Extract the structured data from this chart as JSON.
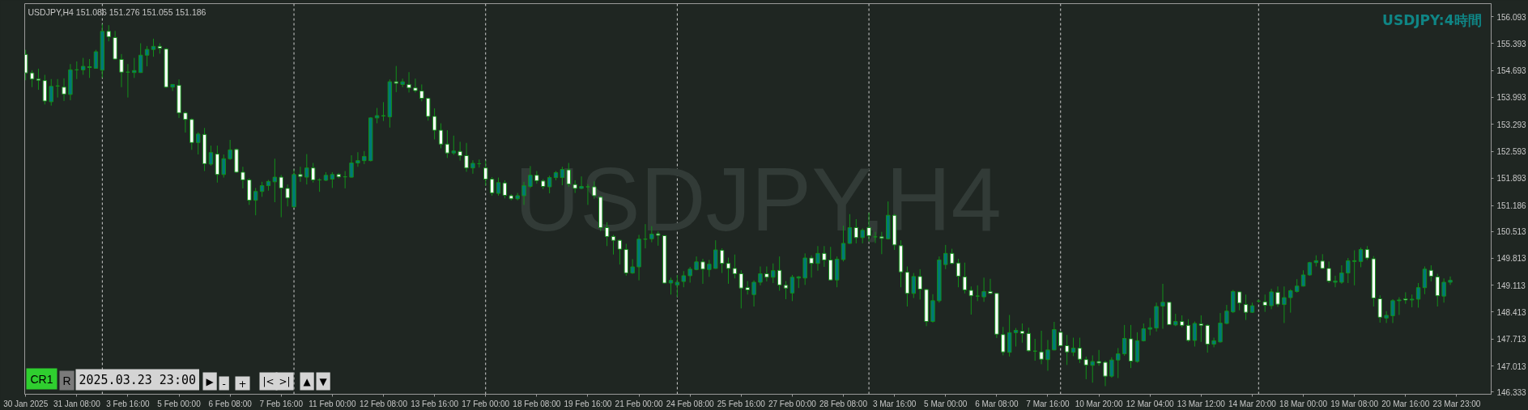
{
  "chart_data": {
    "type": "candlestick",
    "title": "USDJPY:4時間",
    "subtitle": "USDJPY,H4 151.086 151.276 151.055 151.186",
    "annotations": [
      "USDJPY,H4",
      "CR1",
      "R",
      "2025.03.23 23:00",
      "▶",
      "-",
      "+",
      "|<",
      ">|",
      "▲",
      "▼"
    ],
    "categories": [
      "30 Jan 2025",
      null,
      null,
      null,
      null,
      null,
      null,
      null,
      "31 Jan 08:00",
      null,
      null,
      null,
      null,
      null,
      null,
      null,
      "3 Feb 16:00",
      null,
      null,
      null,
      null,
      null,
      null,
      null,
      "5 Feb 00:00",
      null,
      null,
      null,
      null,
      null,
      null,
      null,
      "6 Feb 08:00",
      null,
      null,
      null,
      null,
      null,
      null,
      null,
      "7 Feb 16:00",
      null,
      null,
      null,
      null,
      null,
      null,
      null,
      "11 Feb 00:00",
      null,
      null,
      null,
      null,
      null,
      null,
      null,
      "12 Feb 08:00",
      null,
      null,
      null,
      null,
      null,
      null,
      null,
      "13 Feb 16:00",
      null,
      null,
      null,
      null,
      null,
      null,
      null,
      "17 Feb 00:00",
      null,
      null,
      null,
      null,
      null,
      null,
      null,
      "18 Feb 08:00",
      null,
      null,
      null,
      null,
      null,
      null,
      null,
      "19 Feb 16:00",
      null,
      null,
      null,
      null,
      null,
      null,
      null,
      "21 Feb 00:00",
      null,
      null,
      null,
      null,
      null,
      null,
      null,
      "24 Feb 08:00",
      null,
      null,
      null,
      null,
      null,
      null,
      null,
      "25 Feb 16:00",
      null,
      null,
      null,
      null,
      null,
      null,
      null,
      "27 Feb 00:00",
      null,
      null,
      null,
      null,
      null,
      null,
      null,
      "28 Feb 08:00",
      null,
      null,
      null,
      null,
      null,
      null,
      null,
      "3 Mar 16:00",
      null,
      null,
      null,
      null,
      null,
      null,
      null,
      "5 Mar 00:00",
      null,
      null,
      null,
      null,
      null,
      null,
      null,
      "6 Mar 08:00",
      null,
      null,
      null,
      null,
      null,
      null,
      null,
      "7 Mar 16:00",
      null,
      null,
      null,
      null,
      null,
      null,
      null,
      "10 Mar 20:00",
      null,
      null,
      null,
      null,
      null,
      null,
      null,
      "12 Mar 04:00",
      null,
      null,
      null,
      null,
      null,
      null,
      null,
      "13 Mar 12:00",
      null,
      null,
      null,
      null,
      null,
      null,
      null,
      "14 Mar 20:00",
      null,
      null,
      null,
      null,
      null,
      null,
      null,
      "18 Mar 00:00",
      null,
      null,
      null,
      null,
      null,
      null,
      null,
      "19 Mar 08:00",
      null,
      null,
      null,
      null,
      null,
      null,
      null,
      "20 Mar 16:00",
      null,
      null,
      null,
      null,
      null,
      null,
      null,
      "23 Mar 23:00"
    ],
    "ohlc": [
      [
        155.11,
        155.23,
        154.44,
        154.63
      ],
      [
        154.63,
        154.7,
        154.26,
        154.47
      ],
      [
        154.47,
        154.74,
        154.19,
        154.44
      ],
      [
        154.43,
        154.58,
        153.81,
        153.9
      ],
      [
        153.88,
        154.47,
        153.78,
        154.28
      ],
      [
        154.29,
        154.47,
        153.99,
        154.29
      ],
      [
        154.26,
        154.49,
        153.9,
        154.08
      ],
      [
        154.07,
        154.86,
        153.92,
        154.71
      ],
      [
        154.71,
        154.93,
        154.47,
        154.71
      ],
      [
        154.71,
        155.02,
        154.58,
        154.8
      ],
      [
        154.79,
        154.99,
        154.5,
        154.77
      ],
      [
        154.75,
        155.23,
        154.74,
        155.18
      ],
      [
        154.7,
        155.9,
        154.5,
        155.71
      ],
      [
        155.71,
        155.87,
        155.45,
        155.57
      ],
      [
        155.55,
        155.72,
        154.98,
        154.99
      ],
      [
        154.98,
        155.12,
        154.26,
        154.65
      ],
      [
        154.65,
        154.86,
        153.99,
        154.65
      ],
      [
        154.64,
        155.02,
        154.5,
        154.69
      ],
      [
        154.64,
        155.4,
        154.63,
        155.09
      ],
      [
        155.09,
        155.33,
        154.8,
        155.24
      ],
      [
        155.24,
        155.52,
        155.05,
        155.32
      ],
      [
        155.32,
        155.4,
        155.13,
        155.27
      ],
      [
        155.25,
        155.28,
        154.24,
        154.26
      ],
      [
        154.26,
        154.34,
        154.16,
        154.33
      ],
      [
        154.31,
        154.46,
        153.46,
        153.59
      ],
      [
        153.59,
        153.63,
        153.08,
        153.42
      ],
      [
        153.42,
        153.45,
        152.63,
        152.82
      ],
      [
        152.82,
        153.09,
        152.51,
        153.04
      ],
      [
        153.03,
        153.2,
        152.08,
        152.27
      ],
      [
        152.26,
        152.74,
        152.22,
        152.56
      ],
      [
        152.52,
        152.74,
        151.78,
        151.99
      ],
      [
        151.99,
        152.51,
        151.91,
        152.4
      ],
      [
        152.4,
        152.89,
        152.37,
        152.63
      ],
      [
        152.64,
        152.67,
        152.03,
        152.05
      ],
      [
        152.05,
        152.19,
        151.63,
        151.85
      ],
      [
        151.85,
        151.89,
        151.2,
        151.32
      ],
      [
        151.32,
        151.64,
        150.93,
        151.55
      ],
      [
        151.55,
        151.8,
        151.41,
        151.7
      ],
      [
        151.7,
        151.85,
        151.57,
        151.81
      ],
      [
        151.8,
        152.4,
        151.27,
        151.92
      ],
      [
        151.92,
        151.98,
        150.88,
        151.64
      ],
      [
        151.63,
        151.73,
        151.16,
        151.38
      ],
      [
        151.15,
        152.12,
        151.13,
        151.99
      ],
      [
        151.99,
        152.19,
        151.8,
        151.94
      ],
      [
        151.92,
        152.52,
        151.73,
        152.16
      ],
      [
        152.16,
        152.29,
        151.78,
        151.85
      ],
      [
        151.85,
        151.89,
        151.54,
        151.85
      ],
      [
        151.84,
        152.05,
        151.82,
        151.97
      ],
      [
        151.87,
        152.05,
        151.64,
        151.99
      ],
      [
        151.99,
        152.03,
        151.89,
        151.93
      ],
      [
        151.93,
        152.08,
        151.63,
        151.93
      ],
      [
        151.92,
        152.49,
        151.91,
        152.29
      ],
      [
        152.29,
        152.57,
        152.19,
        152.35
      ],
      [
        152.35,
        152.6,
        152.26,
        152.46
      ],
      [
        152.35,
        153.48,
        152.33,
        153.46
      ],
      [
        153.46,
        153.72,
        153.32,
        153.52
      ],
      [
        153.51,
        153.87,
        153.38,
        153.52
      ],
      [
        153.49,
        154.46,
        153.21,
        154.4
      ],
      [
        154.4,
        154.81,
        154.13,
        154.36
      ],
      [
        154.33,
        154.48,
        154.26,
        154.4
      ],
      [
        154.33,
        154.65,
        154.12,
        154.24
      ],
      [
        154.24,
        154.48,
        154.12,
        154.17
      ],
      [
        154.16,
        154.33,
        153.89,
        153.97
      ],
      [
        153.97,
        153.99,
        153.39,
        153.5
      ],
      [
        153.5,
        153.71,
        152.9,
        153.14
      ],
      [
        153.14,
        153.32,
        152.67,
        152.78
      ],
      [
        152.78,
        153.14,
        152.42,
        152.55
      ],
      [
        152.55,
        153.0,
        152.5,
        152.6
      ],
      [
        152.59,
        152.84,
        152.35,
        152.48
      ],
      [
        152.48,
        152.81,
        152.06,
        152.16
      ],
      [
        152.16,
        152.36,
        152.01,
        152.28
      ],
      [
        152.27,
        152.38,
        152.17,
        152.27
      ],
      [
        152.16,
        152.36,
        151.7,
        151.87
      ],
      [
        151.87,
        151.92,
        151.44,
        151.51
      ],
      [
        151.5,
        151.91,
        151.44,
        151.78
      ],
      [
        151.77,
        151.84,
        151.37,
        151.45
      ],
      [
        151.44,
        151.48,
        151.32,
        151.36
      ],
      [
        151.36,
        151.51,
        151.32,
        151.44
      ],
      [
        151.44,
        151.8,
        151.2,
        151.7
      ],
      [
        151.68,
        152.21,
        151.64,
        151.97
      ],
      [
        151.97,
        152.08,
        151.75,
        151.83
      ],
      [
        151.82,
        151.87,
        151.61,
        151.68
      ],
      [
        151.67,
        151.96,
        151.5,
        151.91
      ],
      [
        151.91,
        152.08,
        151.84,
        152.04
      ],
      [
        151.91,
        152.19,
        151.71,
        152.12
      ],
      [
        152.11,
        152.29,
        151.67,
        151.74
      ],
      [
        151.73,
        151.84,
        151.51,
        151.63
      ],
      [
        151.63,
        151.94,
        151.61,
        151.68
      ],
      [
        151.67,
        151.74,
        151.2,
        151.67
      ],
      [
        151.67,
        151.81,
        151.36,
        151.44
      ],
      [
        151.4,
        151.43,
        150.52,
        150.61
      ],
      [
        150.61,
        150.75,
        150.13,
        150.38
      ],
      [
        150.38,
        150.42,
        149.91,
        150.28
      ],
      [
        150.28,
        150.3,
        149.65,
        150.05
      ],
      [
        150.04,
        150.19,
        149.36,
        149.43
      ],
      [
        149.43,
        149.79,
        149.41,
        149.59
      ],
      [
        149.59,
        150.42,
        149.24,
        150.31
      ],
      [
        150.31,
        150.7,
        150.07,
        150.31
      ],
      [
        150.32,
        150.65,
        150.23,
        150.44
      ],
      [
        150.45,
        150.51,
        150.14,
        150.41
      ],
      [
        150.4,
        150.41,
        149.16,
        149.17
      ],
      [
        149.17,
        149.31,
        148.87,
        149.24
      ],
      [
        149.12,
        149.38,
        148.81,
        149.19
      ],
      [
        149.21,
        149.48,
        149.06,
        149.36
      ],
      [
        149.36,
        149.59,
        149.18,
        149.53
      ],
      [
        149.52,
        149.86,
        149.5,
        149.72
      ],
      [
        149.72,
        149.8,
        149.15,
        149.53
      ],
      [
        149.52,
        149.77,
        149.33,
        149.66
      ],
      [
        149.55,
        150.28,
        149.54,
        150.03
      ],
      [
        150.02,
        150.07,
        149.43,
        149.68
      ],
      [
        149.68,
        149.83,
        149.15,
        149.55
      ],
      [
        149.55,
        149.91,
        149.29,
        149.41
      ],
      [
        149.41,
        149.5,
        148.51,
        149.04
      ],
      [
        149.05,
        149.22,
        148.87,
        148.99
      ],
      [
        148.87,
        149.24,
        148.56,
        149.19
      ],
      [
        149.19,
        149.6,
        149.11,
        149.41
      ],
      [
        149.41,
        149.6,
        149.21,
        149.32
      ],
      [
        149.32,
        149.68,
        149.17,
        149.49
      ],
      [
        149.5,
        149.86,
        148.97,
        149.12
      ],
      [
        149.11,
        149.22,
        148.75,
        149.04
      ],
      [
        148.91,
        149.38,
        148.7,
        149.32
      ],
      [
        149.3,
        149.35,
        149.04,
        149.33
      ],
      [
        149.3,
        149.94,
        149.12,
        149.82
      ],
      [
        149.82,
        149.89,
        149.31,
        149.68
      ],
      [
        149.68,
        150.13,
        149.49,
        149.94
      ],
      [
        149.94,
        150.13,
        149.59,
        149.77
      ],
      [
        149.77,
        150.11,
        149.24,
        149.25
      ],
      [
        149.25,
        149.86,
        149.06,
        149.79
      ],
      [
        149.78,
        150.66,
        149.73,
        150.2
      ],
      [
        150.2,
        150.96,
        150.19,
        150.61
      ],
      [
        150.61,
        150.83,
        150.2,
        150.35
      ],
      [
        150.35,
        150.59,
        150.2,
        150.54
      ],
      [
        150.61,
        151.0,
        150.25,
        150.4
      ],
      [
        150.37,
        150.5,
        150.21,
        150.37
      ],
      [
        150.37,
        150.5,
        149.92,
        150.33
      ],
      [
        150.32,
        151.29,
        150.3,
        150.93
      ],
      [
        150.93,
        150.96,
        150.03,
        150.16
      ],
      [
        150.14,
        150.28,
        149.06,
        149.46
      ],
      [
        149.45,
        149.6,
        148.56,
        148.9
      ],
      [
        148.9,
        149.43,
        148.78,
        149.34
      ],
      [
        149.34,
        149.53,
        148.74,
        149.01
      ],
      [
        149.0,
        149.02,
        148.05,
        148.17
      ],
      [
        148.17,
        148.88,
        148.14,
        148.71
      ],
      [
        148.71,
        149.86,
        148.66,
        149.77
      ],
      [
        149.65,
        150.16,
        149.53,
        149.94
      ],
      [
        149.94,
        150.06,
        149.66,
        149.68
      ],
      [
        149.69,
        149.8,
        149.06,
        149.35
      ],
      [
        149.33,
        149.7,
        148.9,
        148.99
      ],
      [
        148.98,
        149.08,
        148.35,
        148.84
      ],
      [
        148.83,
        149.11,
        148.7,
        148.83
      ],
      [
        148.81,
        149.31,
        148.68,
        148.95
      ],
      [
        148.95,
        149.28,
        148.88,
        148.9
      ],
      [
        148.9,
        148.91,
        147.74,
        147.84
      ],
      [
        147.83,
        148.03,
        147.29,
        147.38
      ],
      [
        147.37,
        148.34,
        147.26,
        147.88
      ],
      [
        147.88,
        148.0,
        147.52,
        147.94
      ],
      [
        147.92,
        148.12,
        147.62,
        147.86
      ],
      [
        147.86,
        148.01,
        147.38,
        147.41
      ],
      [
        147.4,
        147.72,
        147.15,
        147.4
      ],
      [
        147.38,
        147.93,
        147.06,
        147.19
      ],
      [
        147.18,
        147.69,
        146.89,
        147.43
      ],
      [
        147.43,
        148.16,
        147.42,
        147.96
      ],
      [
        147.89,
        147.91,
        147.52,
        147.54
      ],
      [
        147.54,
        147.82,
        147.04,
        147.38
      ],
      [
        147.37,
        147.75,
        147.27,
        147.48
      ],
      [
        147.48,
        147.75,
        147.09,
        147.19
      ],
      [
        147.18,
        147.26,
        146.67,
        147.04
      ],
      [
        147.03,
        147.29,
        146.58,
        147.13
      ],
      [
        147.13,
        147.43,
        147.02,
        147.09
      ],
      [
        147.11,
        147.15,
        146.49,
        146.75
      ],
      [
        146.75,
        147.24,
        146.71,
        147.17
      ],
      [
        147.17,
        147.48,
        146.7,
        147.33
      ],
      [
        147.33,
        148.08,
        147.28,
        147.73
      ],
      [
        147.72,
        148.08,
        146.96,
        147.14
      ],
      [
        147.13,
        147.89,
        147.1,
        147.67
      ],
      [
        147.67,
        148.12,
        147.65,
        147.98
      ],
      [
        147.97,
        148.26,
        147.81,
        148.01
      ],
      [
        148.0,
        148.66,
        147.91,
        148.56
      ],
      [
        148.57,
        149.15,
        147.98,
        148.67
      ],
      [
        148.67,
        148.68,
        148.08,
        148.09
      ],
      [
        148.08,
        148.37,
        148.05,
        148.17
      ],
      [
        148.17,
        148.33,
        148.02,
        148.07
      ],
      [
        148.07,
        148.23,
        147.64,
        147.68
      ],
      [
        147.68,
        148.17,
        147.52,
        148.12
      ],
      [
        148.11,
        148.33,
        147.64,
        148.07
      ],
      [
        148.07,
        148.1,
        147.36,
        147.58
      ],
      [
        147.58,
        147.75,
        147.5,
        147.67
      ],
      [
        147.64,
        148.39,
        147.62,
        148.13
      ],
      [
        148.12,
        148.6,
        148.1,
        148.44
      ],
      [
        148.42,
        148.99,
        148.39,
        148.95
      ],
      [
        148.94,
        148.95,
        148.46,
        148.65
      ],
      [
        148.61,
        148.87,
        148.21,
        148.41
      ],
      [
        148.41,
        148.66,
        148.39,
        148.58
      ],
      [
        148.7,
        148.74,
        148.66,
        148.7
      ],
      [
        148.68,
        148.87,
        148.42,
        148.59
      ],
      [
        148.58,
        149.02,
        148.49,
        148.94
      ],
      [
        148.93,
        149.08,
        148.55,
        148.62
      ],
      [
        148.61,
        149.08,
        148.13,
        148.79
      ],
      [
        148.79,
        149.01,
        148.4,
        148.97
      ],
      [
        148.95,
        149.27,
        148.92,
        149.09
      ],
      [
        149.09,
        149.5,
        149.08,
        149.38
      ],
      [
        149.38,
        149.72,
        149.36,
        149.7
      ],
      [
        149.7,
        149.89,
        149.6,
        149.75
      ],
      [
        149.74,
        149.92,
        149.53,
        149.55
      ],
      [
        149.55,
        149.73,
        149.17,
        149.22
      ],
      [
        149.19,
        149.36,
        149.06,
        149.22
      ],
      [
        149.19,
        149.63,
        149.15,
        149.43
      ],
      [
        149.43,
        149.82,
        149.17,
        149.75
      ],
      [
        149.73,
        150.02,
        149.11,
        149.75
      ],
      [
        149.73,
        150.09,
        149.58,
        150.04
      ],
      [
        150.04,
        150.13,
        149.77,
        149.82
      ],
      [
        149.8,
        149.87,
        148.56,
        148.78
      ],
      [
        148.76,
        148.85,
        148.14,
        148.28
      ],
      [
        148.26,
        148.44,
        148.13,
        148.33
      ],
      [
        148.32,
        148.75,
        148.13,
        148.71
      ],
      [
        148.71,
        148.8,
        148.34,
        148.73
      ],
      [
        148.76,
        148.93,
        148.63,
        148.73
      ],
      [
        148.73,
        148.87,
        148.54,
        148.75
      ],
      [
        148.75,
        149.17,
        148.53,
        149.05
      ],
      [
        149.05,
        149.6,
        148.88,
        149.53
      ],
      [
        149.5,
        149.63,
        149.21,
        149.35
      ],
      [
        149.33,
        149.41,
        148.56,
        148.84
      ],
      [
        148.83,
        149.29,
        148.66,
        149.19
      ],
      [
        149.19,
        149.34,
        149.12,
        149.24
      ],
      null
    ],
    "colors": [
      "#ffffff",
      "#ffffff",
      "#ffffff",
      "#ffffff",
      "#00787a",
      "#12901a",
      "#ffffff",
      "#00787a",
      "#12901a",
      "#00787a",
      "#ffffff",
      "#00787a",
      "#00787a",
      "#ffffff",
      "#ffffff",
      "#ffffff",
      "#12901a",
      "#00787a",
      "#00787a",
      "#00787a",
      "#00787a",
      "#ffffff",
      "#ffffff",
      "#00787a",
      "#ffffff",
      "#ffffff",
      "#ffffff",
      "#00787a",
      "#ffffff",
      "#00787a",
      "#ffffff",
      "#00787a",
      "#00787a",
      "#ffffff",
      "#ffffff",
      "#ffffff",
      "#00787a",
      "#00787a",
      "#00787a",
      "#00787a",
      "#ffffff",
      "#ffffff",
      "#00787a",
      "#ffffff",
      "#00787a",
      "#ffffff",
      "#12901a",
      "#00787a",
      "#00787a",
      "#ffffff",
      "#12901a",
      "#00787a",
      "#00787a",
      "#00787a",
      "#00787a",
      "#00787a",
      "#00787a",
      "#00787a",
      "#ffffff",
      "#00787a",
      "#ffffff",
      "#ffffff",
      "#ffffff",
      "#ffffff",
      "#ffffff",
      "#ffffff",
      "#ffffff",
      "#00787a",
      "#ffffff",
      "#ffffff",
      "#00787a",
      "#12901a",
      "#ffffff",
      "#ffffff",
      "#00787a",
      "#ffffff",
      "#ffffff",
      "#00787a",
      "#00787a",
      "#00787a",
      "#ffffff",
      "#ffffff",
      "#00787a",
      "#00787a",
      "#00787a",
      "#ffffff",
      "#ffffff",
      "#00787a",
      "#12901a",
      "#ffffff",
      "#ffffff",
      "#ffffff",
      "#ffffff",
      "#ffffff",
      "#ffffff",
      "#00787a",
      "#00787a",
      "#12901a",
      "#00787a",
      "#ffffff",
      "#ffffff",
      "#00787a",
      "#00787a",
      "#00787a",
      "#00787a",
      "#00787a",
      "#ffffff",
      "#00787a",
      "#00787a",
      "#ffffff",
      "#ffffff",
      "#ffffff",
      "#ffffff",
      "#ffffff",
      "#00787a",
      "#00787a",
      "#ffffff",
      "#00787a",
      "#ffffff",
      "#ffffff",
      "#00787a",
      "#00787a",
      "#00787a",
      "#ffffff",
      "#00787a",
      "#ffffff",
      "#ffffff",
      "#00787a",
      "#00787a",
      "#00787a",
      "#ffffff",
      "#00787a",
      "#ffffff",
      "#12901a",
      "#ffffff",
      "#00787a",
      "#ffffff",
      "#ffffff",
      "#ffffff",
      "#00787a",
      "#ffffff",
      "#ffffff",
      "#00787a",
      "#00787a",
      "#00787a",
      "#ffffff",
      "#ffffff",
      "#ffffff",
      "#ffffff",
      "#12901a",
      "#00787a",
      "#ffffff",
      "#ffffff",
      "#ffffff",
      "#00787a",
      "#00787a",
      "#ffffff",
      "#ffffff",
      "#12901a",
      "#ffffff",
      "#00787a",
      "#00787a",
      "#ffffff",
      "#ffffff",
      "#00787a",
      "#ffffff",
      "#ffffff",
      "#00787a",
      "#ffffff",
      "#ffffff",
      "#00787a",
      "#00787a",
      "#00787a",
      "#ffffff",
      "#00787a",
      "#00787a",
      "#00787a",
      "#00787a",
      "#00787a",
      "#ffffff",
      "#00787a",
      "#ffffff",
      "#ffffff",
      "#00787a",
      "#ffffff",
      "#ffffff",
      "#00787a",
      "#00787a",
      "#00787a",
      "#00787a",
      "#ffffff",
      "#ffffff",
      "#00787a",
      "#12901a",
      "#ffffff",
      "#00787a",
      "#ffffff",
      "#00787a",
      "#00787a",
      "#00787a",
      "#00787a",
      "#00787a",
      "#00787a",
      "#ffffff",
      "#ffffff",
      "#00787a",
      "#00787a",
      "#00787a",
      "#00787a",
      "#00787a",
      "#ffffff",
      "#ffffff",
      "#ffffff",
      "#00787a",
      "#00787a",
      "#00787a",
      "#ffffff",
      "#00787a",
      "#00787a",
      "#00787a",
      "#ffffff",
      "#ffffff",
      "#00787a",
      "#00787a",
      null
    ],
    "color": "#12901a",
    "ylim": [
      146.28,
      156.43
    ],
    "yticks": [
      156.093,
      155.393,
      154.693,
      153.993,
      153.293,
      152.593,
      151.893,
      151.186,
      150.513,
      149.813,
      149.113,
      148.413,
      147.713,
      147.013,
      146.333
    ],
    "grid": false
  }
}
